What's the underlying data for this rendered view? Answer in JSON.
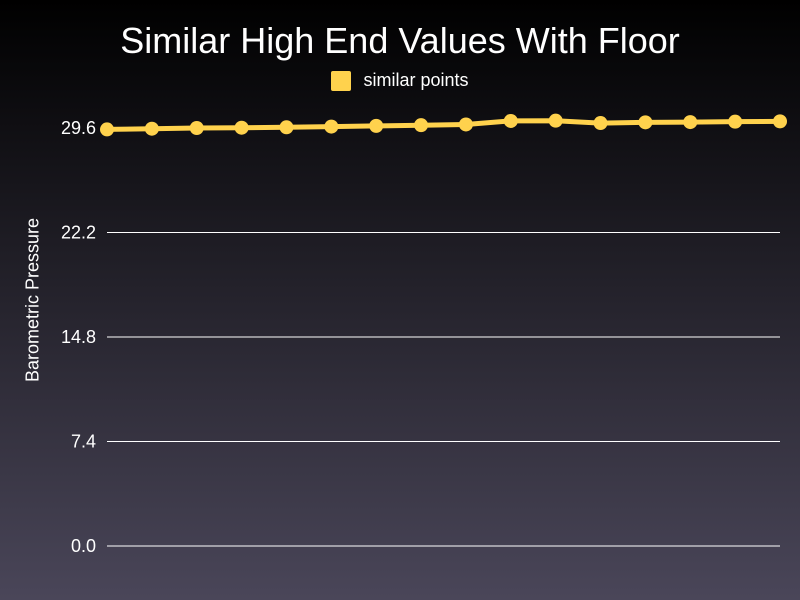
{
  "colors": {
    "background_top": "#000000",
    "background_bottom": "#4a4659",
    "series": "#ffd24d",
    "grid": "#ffffff",
    "text": "#ffffff"
  },
  "chart_data": {
    "type": "line",
    "title": "Similar High End Values With Floor",
    "xlabel": "",
    "ylabel": "Barometric Pressure",
    "ylim": [
      0,
      29.6
    ],
    "yticks": [
      "0.0",
      "7.4",
      "14.8",
      "22.2",
      "29.6"
    ],
    "grid": true,
    "legend_position": "top",
    "x": [
      1,
      2,
      3,
      4,
      5,
      6,
      7,
      8,
      9,
      10,
      11,
      12,
      13,
      14,
      15,
      16
    ],
    "series": [
      {
        "name": "similar points",
        "values": [
          29.5,
          29.55,
          29.6,
          29.62,
          29.65,
          29.7,
          29.75,
          29.8,
          29.85,
          30.1,
          30.12,
          29.95,
          30.0,
          30.02,
          30.05,
          30.07
        ]
      }
    ]
  }
}
